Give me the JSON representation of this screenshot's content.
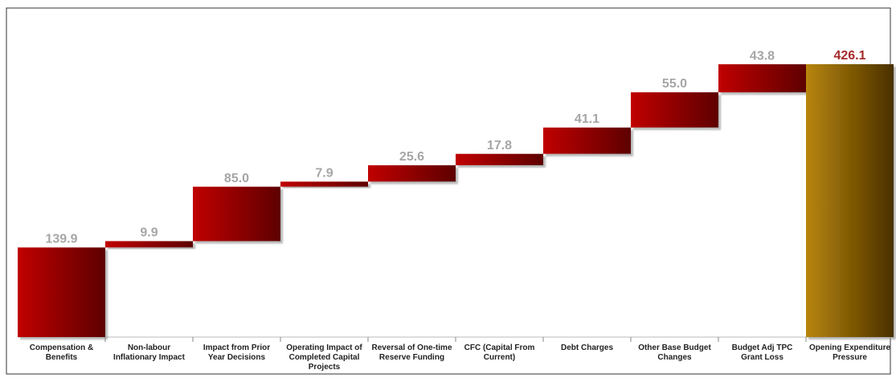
{
  "chart_data": {
    "type": "waterfall",
    "categories": [
      "Compensation & Benefits",
      "Non-labour Inflationary Impact",
      "Impact from Prior Year Decisions",
      "Operating Impact of Completed Capital Projects",
      "Reversal of One-time Reserve Funding",
      "CFC (Capital From Current)",
      "Debt Charges",
      "Other Base Budget Changes",
      "Budget Adj TPC Grant Loss",
      "Opening Expenditure Pressure"
    ],
    "values": [
      139.9,
      9.9,
      85.0,
      7.9,
      25.6,
      17.8,
      41.1,
      55.0,
      43.8,
      426.1
    ],
    "value_labels": [
      "139.9",
      "9.9",
      "85.0",
      "7.9",
      "25.6",
      "17.8",
      "41.1",
      "55.0",
      "43.8",
      "426.1"
    ],
    "last_is_total": true,
    "color": "#c00000",
    "color_dark": "#5e0000",
    "total_color": "#b8860b",
    "total_color_dark": "#4a3000",
    "label_color": "#a6a6a6",
    "total_label_color": "#a52a2a"
  }
}
